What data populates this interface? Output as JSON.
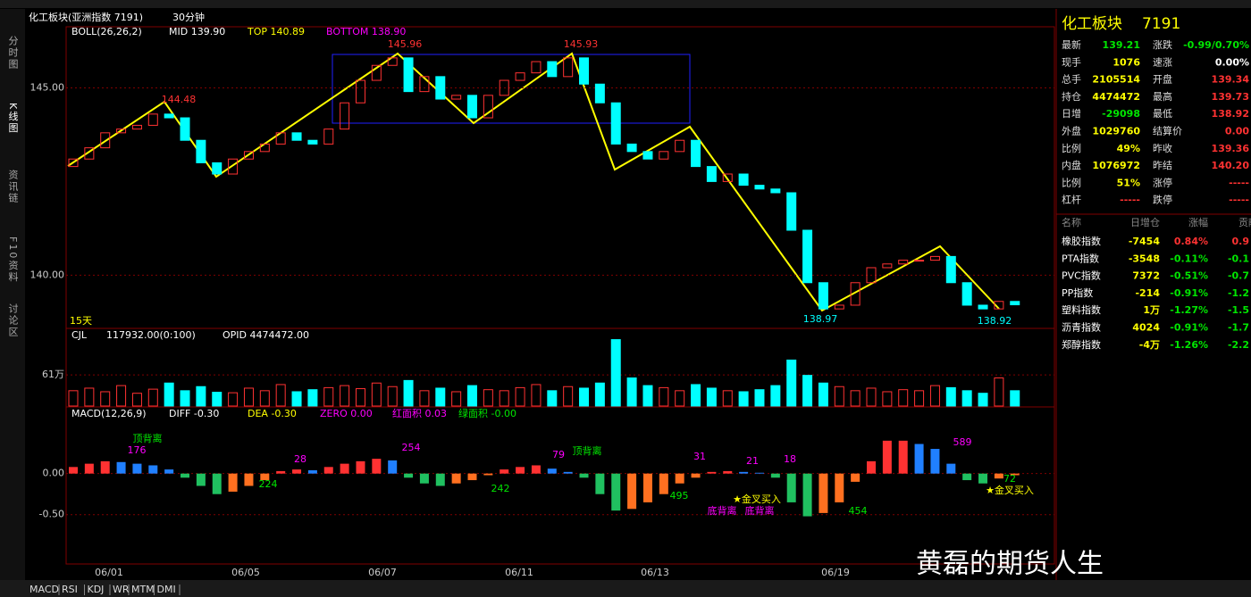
{
  "toolbar": {
    "title": "化工板块(亚洲指数 7191)",
    "period": "30分钟"
  },
  "sidebar": [
    "分时图",
    "K线图",
    "资讯链",
    "F10资料",
    "讨论区"
  ],
  "price_panel": {
    "legend": [
      "BOLL(26,26,2)",
      "MID 139.90",
      "TOP 140.89",
      "BOTTOM 138.90"
    ],
    "ylim": [
      138.58,
      146.63
    ],
    "yticks": [
      {
        "value": 145,
        "label": "145.00"
      },
      {
        "value": 140,
        "label": "140.00"
      }
    ],
    "open": [
      142.9,
      143.1,
      143.4,
      143.8,
      143.9,
      144.0,
      144.3,
      144.2,
      143.6,
      143.0,
      142.7,
      143.1,
      143.3,
      143.5,
      143.8,
      143.6,
      143.5,
      143.9,
      144.6,
      145.2,
      145.6,
      145.8,
      144.9,
      145.3,
      144.7,
      144.8,
      144.2,
      144.8,
      145.2,
      145.4,
      145.7,
      145.3,
      145.8,
      145.1,
      144.6,
      143.5,
      143.3,
      143.1,
      143.3,
      143.6,
      142.9,
      142.5,
      142.7,
      142.4,
      142.3,
      142.2,
      141.2,
      139.8,
      139.1,
      139.2,
      139.8,
      140.2,
      140.3,
      140.4,
      140.4,
      140.5,
      139.8,
      139.2,
      139.1,
      139.3
    ],
    "close": [
      143.1,
      143.4,
      143.8,
      143.9,
      144.0,
      144.3,
      144.2,
      143.6,
      143.0,
      142.7,
      143.1,
      143.3,
      143.5,
      143.8,
      143.6,
      143.5,
      143.9,
      144.6,
      145.2,
      145.6,
      145.8,
      144.9,
      145.3,
      144.7,
      144.8,
      144.2,
      144.8,
      145.2,
      145.4,
      145.7,
      145.3,
      145.8,
      145.1,
      144.6,
      143.5,
      143.3,
      143.1,
      143.3,
      143.6,
      142.9,
      142.5,
      142.7,
      142.4,
      142.3,
      142.2,
      141.2,
      139.8,
      139.1,
      139.2,
      139.8,
      140.2,
      140.3,
      140.4,
      140.4,
      140.5,
      139.8,
      139.2,
      139.1,
      139.3,
      139.21
    ],
    "annotations": [
      "145.96",
      "145.93",
      "144.48",
      "138.97",
      "138.92"
    ],
    "period_label": "15天"
  },
  "volume_panel": {
    "legend": [
      "CJL",
      "117932.00(0:100)",
      "OPID 4474472.00"
    ],
    "ylim": [
      0,
      131
    ],
    "yticks": [
      {
        "value": 61,
        "label": "61万"
      }
    ],
    "values": [
      30,
      35,
      28,
      40,
      25,
      33,
      45,
      30,
      38,
      27,
      26,
      35,
      30,
      42,
      28,
      32,
      36,
      40,
      34,
      45,
      38,
      50,
      30,
      35,
      28,
      40,
      32,
      30,
      36,
      42,
      30,
      38,
      35,
      45,
      130,
      55,
      40,
      36,
      30,
      42,
      35,
      30,
      28,
      32,
      40,
      90,
      60,
      45,
      38,
      30,
      35,
      28,
      32,
      30,
      40,
      36,
      30,
      25,
      55,
      30
    ]
  },
  "macd_panel": {
    "legend": [
      "MACD(12,26,9)",
      "DIFF -0.30",
      "DEA -0.30",
      "ZERO 0.00",
      "红面积 0.03",
      "绿面积 -0.00"
    ],
    "ylim": [
      -1.1,
      0.8
    ],
    "yticks": [
      {
        "value": 0,
        "label": "0.00"
      },
      {
        "value": -0.5,
        "label": "-0.50"
      }
    ],
    "values": [
      0.08,
      0.12,
      0.15,
      0.14,
      0.12,
      0.1,
      0.05,
      -0.05,
      -0.15,
      -0.25,
      -0.22,
      -0.15,
      -0.08,
      0.03,
      0.05,
      0.04,
      0.08,
      0.12,
      0.15,
      0.18,
      0.16,
      -0.05,
      -0.12,
      -0.15,
      -0.12,
      -0.08,
      -0.02,
      0.05,
      0.08,
      0.1,
      0.06,
      0.02,
      -0.05,
      -0.25,
      -0.45,
      -0.43,
      -0.35,
      -0.25,
      -0.12,
      -0.05,
      0.02,
      0.03,
      0.02,
      0.01,
      -0.05,
      -0.35,
      -0.52,
      -0.48,
      -0.35,
      -0.1,
      0.15,
      0.4,
      0.4,
      0.36,
      0.3,
      0.12,
      -0.08,
      -0.12,
      -0.06,
      -0.02
    ],
    "annotations": [
      "顶背离",
      "176",
      "224",
      "28",
      "254",
      "242",
      "79",
      "顶背离",
      "495",
      "31",
      "21",
      "18",
      "★金叉买入",
      "底背离",
      "底背离",
      "454",
      "589",
      "72",
      "★金叉买入"
    ]
  },
  "x_axis": {
    "ticks": [
      "06/01",
      "06/05",
      "06/07",
      "06/11",
      "06/13",
      "06/19"
    ]
  },
  "quote": {
    "name": "化工板块",
    "code": "7191",
    "rows": [
      [
        "最新",
        "139.21",
        "涨跌",
        "-0.99/0.70%"
      ],
      [
        "现手",
        "1076",
        "速涨",
        "0.00%"
      ],
      [
        "总手",
        "2105514",
        "开盘",
        "139.34"
      ],
      [
        "持仓",
        "4474472",
        "最高",
        "139.73"
      ],
      [
        "日增",
        "-29098",
        "最低",
        "138.92"
      ],
      [
        "外盘",
        "1029760",
        "结算价",
        "0.00"
      ],
      [
        "比例",
        "49%",
        "昨收",
        "139.36"
      ],
      [
        "内盘",
        "1076972",
        "昨结",
        "140.20"
      ],
      [
        "比例",
        "51%",
        "涨停",
        "-----"
      ],
      [
        "杠杆",
        "-----",
        "跌停",
        "-----"
      ]
    ]
  },
  "components": {
    "header": [
      "名称",
      "日增仓",
      "涨幅",
      "贡献"
    ],
    "rows": [
      [
        "橡胶指数",
        "-7454",
        "0.84%",
        "0.9"
      ],
      [
        "PTA指数",
        "-3548",
        "-0.11%",
        "-0.1"
      ],
      [
        "PVC指数",
        "7372",
        "-0.51%",
        "-0.7"
      ],
      [
        "PP指数",
        "-214",
        "-0.91%",
        "-1.2"
      ],
      [
        "塑料指数",
        "1万",
        "-1.27%",
        "-1.5"
      ],
      [
        "沥青指数",
        "4024",
        "-0.91%",
        "-1.7"
      ],
      [
        "郑醇指数",
        "-4万",
        "-1.26%",
        "-2.2"
      ]
    ]
  },
  "tabs": [
    "MACD",
    "RSI",
    "KDJ",
    "WR",
    "MTM",
    "DMI"
  ],
  "watermark": "黄磊的期货人生"
}
